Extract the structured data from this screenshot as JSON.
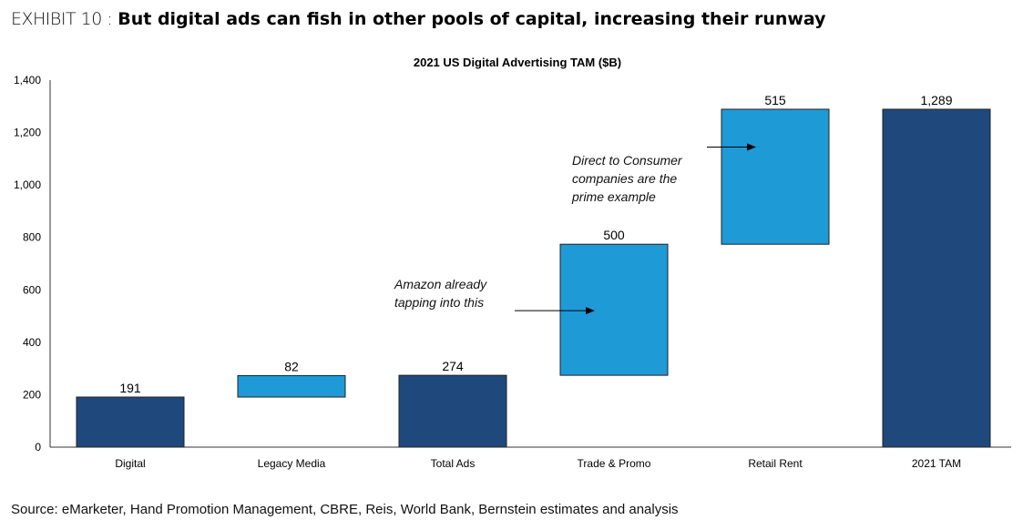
{
  "header": {
    "exhibit": "EXHIBIT 10 :",
    "title": "But digital ads can fish in other pools of capital, increasing their runway"
  },
  "source": "Source: eMarketer, Hand Promotion Management, CBRE, Reis, World Bank, Bernstein estimates and analysis",
  "chart_data": {
    "type": "bar",
    "subtype": "waterfall",
    "title": "2021 US Digital Advertising TAM ($B)",
    "xlabel": "",
    "ylabel": "",
    "ylim": [
      0,
      1400
    ],
    "yticks": [
      0,
      200,
      400,
      600,
      800,
      1000,
      1200,
      1400
    ],
    "ytick_labels": [
      "0",
      "200",
      "400",
      "600",
      "800",
      "1,000",
      "1,200",
      "1,400"
    ],
    "grid": false,
    "categories": [
      "Digital",
      "Legacy Media",
      "Total Ads",
      "Trade & Promo",
      "Retail Rent",
      "2021 TAM"
    ],
    "values": [
      191,
      82,
      274,
      500,
      515,
      1289
    ],
    "bases": [
      0,
      191,
      0,
      274,
      774,
      0
    ],
    "kinds": [
      "total",
      "increment",
      "total",
      "increment",
      "increment",
      "total"
    ],
    "data_labels": [
      "191",
      "82",
      "274",
      "500",
      "515",
      "1,289"
    ],
    "colors": {
      "total": "#1F497D",
      "increment": "#1E9AD6"
    },
    "annotations": [
      {
        "lines": [
          "Amazon already",
          "tapping into this"
        ],
        "target": "Trade & Promo"
      },
      {
        "lines": [
          "Direct to Consumer",
          "companies are the",
          "prime example"
        ],
        "target": "Retail Rent"
      }
    ]
  }
}
